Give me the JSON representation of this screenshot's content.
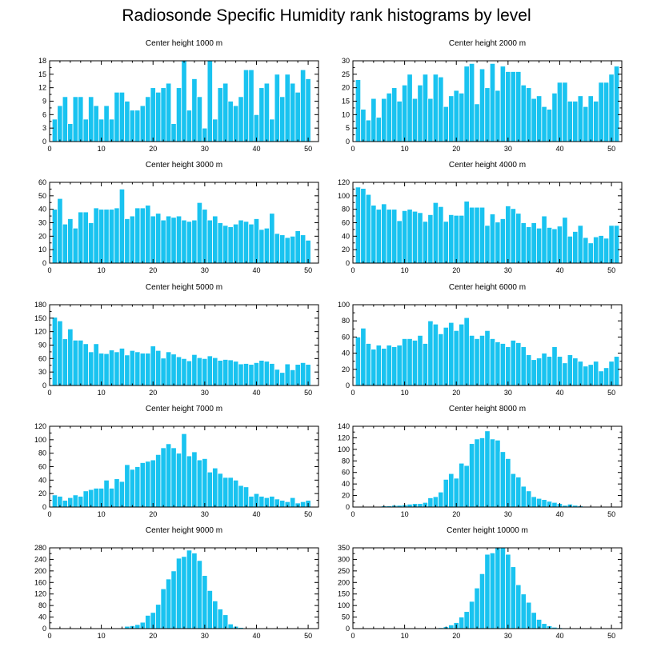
{
  "title": "Radiosonde Specific Humidity rank histograms by level",
  "colors": {
    "bar": "#19c3f0",
    "bar_edge": "#ffffff",
    "axis": "#000000"
  },
  "chart_data": [
    {
      "type": "bar",
      "title": "Center height 1000 m",
      "xlim": [
        0,
        52
      ],
      "ylim": [
        0,
        18
      ],
      "xticks": [
        0,
        10,
        20,
        30,
        40,
        50
      ],
      "yticks": [
        0,
        3,
        6,
        9,
        12,
        15,
        18
      ],
      "values": [
        5,
        8,
        10,
        4,
        10,
        10,
        5,
        10,
        8,
        5,
        8,
        5,
        11,
        11,
        9,
        7,
        7,
        8,
        10,
        12,
        11,
        12,
        13,
        4,
        12,
        18,
        7,
        14,
        10,
        3,
        18,
        5,
        12,
        13,
        9,
        8,
        10,
        16,
        16,
        6,
        12,
        13,
        5,
        15,
        10,
        15,
        13,
        11,
        16,
        14
      ]
    },
    {
      "type": "bar",
      "title": "Center height 2000 m",
      "xlim": [
        0,
        52
      ],
      "ylim": [
        0,
        30
      ],
      "xticks": [
        0,
        10,
        20,
        30,
        40,
        50
      ],
      "yticks": [
        0,
        5,
        10,
        15,
        20,
        25,
        30
      ],
      "values": [
        23,
        12,
        8,
        16,
        9,
        16,
        18,
        20,
        15,
        21,
        25,
        16,
        21,
        25,
        16,
        25,
        24,
        13,
        17,
        19,
        18,
        28,
        29,
        14,
        27,
        20,
        29,
        19,
        28,
        26,
        26,
        26,
        21,
        20,
        16,
        17,
        13,
        12,
        18,
        22,
        22,
        15,
        15,
        17,
        13,
        17,
        15,
        22,
        22,
        25,
        28
      ]
    },
    {
      "type": "bar",
      "title": "Center height 3000 m",
      "xlim": [
        0,
        52
      ],
      "ylim": [
        0,
        60
      ],
      "xticks": [
        0,
        10,
        20,
        30,
        40,
        50
      ],
      "yticks": [
        0,
        10,
        20,
        30,
        40,
        50,
        60
      ],
      "values": [
        40,
        48,
        29,
        33,
        26,
        38,
        38,
        30,
        41,
        40,
        40,
        40,
        41,
        55,
        33,
        35,
        41,
        41,
        43,
        35,
        37,
        32,
        35,
        34,
        35,
        32,
        31,
        32,
        45,
        40,
        32,
        35,
        30,
        28,
        27,
        29,
        32,
        31,
        29,
        33,
        25,
        26,
        37,
        22,
        21,
        19,
        20,
        24,
        21,
        17
      ]
    },
    {
      "type": "bar",
      "title": "Center height 4000 m",
      "xlim": [
        0,
        52
      ],
      "ylim": [
        0,
        120
      ],
      "xticks": [
        0,
        10,
        20,
        30,
        40,
        50
      ],
      "yticks": [
        0,
        20,
        40,
        60,
        80,
        100,
        120
      ],
      "values": [
        113,
        111,
        102,
        86,
        80,
        88,
        80,
        80,
        63,
        78,
        80,
        77,
        75,
        62,
        72,
        90,
        84,
        62,
        72,
        71,
        71,
        92,
        83,
        83,
        83,
        56,
        73,
        61,
        66,
        85,
        81,
        74,
        60,
        54,
        60,
        52,
        70,
        53,
        51,
        55,
        68,
        40,
        47,
        56,
        38,
        30,
        39,
        41,
        37,
        56,
        56
      ]
    },
    {
      "type": "bar",
      "title": "Center height 5000 m",
      "xlim": [
        0,
        52
      ],
      "ylim": [
        0,
        180
      ],
      "xticks": [
        0,
        10,
        20,
        30,
        40,
        50
      ],
      "yticks": [
        0,
        30,
        60,
        90,
        120,
        150,
        180
      ],
      "values": [
        152,
        144,
        104,
        126,
        101,
        101,
        93,
        75,
        93,
        72,
        71,
        79,
        75,
        83,
        68,
        78,
        75,
        72,
        72,
        88,
        78,
        61,
        75,
        70,
        64,
        60,
        55,
        69,
        62,
        60,
        66,
        62,
        56,
        58,
        57,
        54,
        48,
        49,
        47,
        51,
        56,
        54,
        49,
        36,
        29,
        48,
        35,
        47,
        51,
        47
      ]
    },
    {
      "type": "bar",
      "title": "Center height 6000 m",
      "xlim": [
        0,
        52
      ],
      "ylim": [
        0,
        100
      ],
      "xticks": [
        0,
        10,
        20,
        30,
        40,
        50
      ],
      "yticks": [
        0,
        20,
        40,
        60,
        80,
        100
      ],
      "values": [
        60,
        71,
        52,
        45,
        50,
        46,
        50,
        48,
        50,
        58,
        58,
        56,
        62,
        52,
        80,
        76,
        64,
        72,
        78,
        68,
        76,
        84,
        62,
        58,
        62,
        68,
        58,
        54,
        52,
        48,
        56,
        53,
        48,
        38,
        32,
        34,
        40,
        36,
        48,
        36,
        28,
        38,
        34,
        30,
        24,
        26,
        30,
        18,
        22,
        30,
        36
      ]
    },
    {
      "type": "bar",
      "title": "Center height 7000 m",
      "xlim": [
        0,
        52
      ],
      "ylim": [
        0,
        120
      ],
      "xticks": [
        0,
        10,
        20,
        30,
        40,
        50
      ],
      "yticks": [
        0,
        20,
        40,
        60,
        80,
        100,
        120
      ],
      "values": [
        18,
        16,
        10,
        14,
        18,
        16,
        24,
        26,
        28,
        28,
        40,
        28,
        42,
        38,
        63,
        56,
        60,
        66,
        68,
        70,
        78,
        88,
        94,
        88,
        80,
        109,
        76,
        82,
        70,
        72,
        52,
        58,
        50,
        44,
        44,
        40,
        32,
        30,
        16,
        20,
        16,
        14,
        16,
        12,
        10,
        8,
        14,
        6,
        8,
        10
      ]
    },
    {
      "type": "bar",
      "title": "Center height 8000 m",
      "xlim": [
        0,
        52
      ],
      "ylim": [
        0,
        140
      ],
      "xticks": [
        0,
        10,
        20,
        30,
        40,
        50
      ],
      "yticks": [
        0,
        20,
        40,
        60,
        80,
        100,
        120,
        140
      ],
      "values": [
        0,
        0,
        1,
        0,
        1,
        2,
        2,
        3,
        3,
        4,
        5,
        6,
        6,
        8,
        16,
        18,
        26,
        48,
        58,
        50,
        76,
        72,
        110,
        118,
        120,
        132,
        118,
        116,
        96,
        84,
        58,
        52,
        36,
        28,
        18,
        15,
        13,
        10,
        8,
        6,
        3,
        5,
        3,
        2,
        1,
        1,
        0,
        0,
        0,
        0,
        0,
        0
      ]
    },
    {
      "type": "bar",
      "title": "Center height 9000 m",
      "xlim": [
        0,
        52
      ],
      "ylim": [
        0,
        280
      ],
      "xticks": [
        0,
        10,
        20,
        30,
        40,
        50
      ],
      "yticks": [
        0,
        40,
        80,
        120,
        160,
        200,
        240,
        280
      ],
      "values": [
        0,
        0,
        0,
        0,
        0,
        0,
        0,
        0,
        0,
        0,
        0,
        0,
        0,
        0,
        8,
        10,
        14,
        22,
        46,
        56,
        84,
        138,
        172,
        200,
        244,
        250,
        272,
        262,
        236,
        184,
        132,
        96,
        68,
        48,
        16,
        8,
        4,
        2,
        2,
        0,
        1,
        0,
        0,
        0,
        0,
        0,
        0,
        0,
        0,
        0,
        0,
        0
      ]
    },
    {
      "type": "bar",
      "title": "Center height 10000 m",
      "xlim": [
        0,
        52
      ],
      "ylim": [
        0,
        350
      ],
      "xticks": [
        0,
        10,
        20,
        30,
        40,
        50
      ],
      "yticks": [
        0,
        50,
        100,
        150,
        200,
        250,
        300,
        350
      ],
      "values": [
        0,
        0,
        0,
        0,
        0,
        0,
        0,
        0,
        0,
        0,
        0,
        0,
        0,
        0,
        0,
        0,
        4,
        8,
        16,
        26,
        50,
        74,
        118,
        176,
        238,
        322,
        328,
        350,
        352,
        322,
        268,
        190,
        150,
        114,
        70,
        40,
        22,
        12,
        6,
        4,
        2,
        2,
        1,
        1,
        0,
        0,
        0,
        0,
        0,
        0,
        0,
        0
      ]
    }
  ]
}
